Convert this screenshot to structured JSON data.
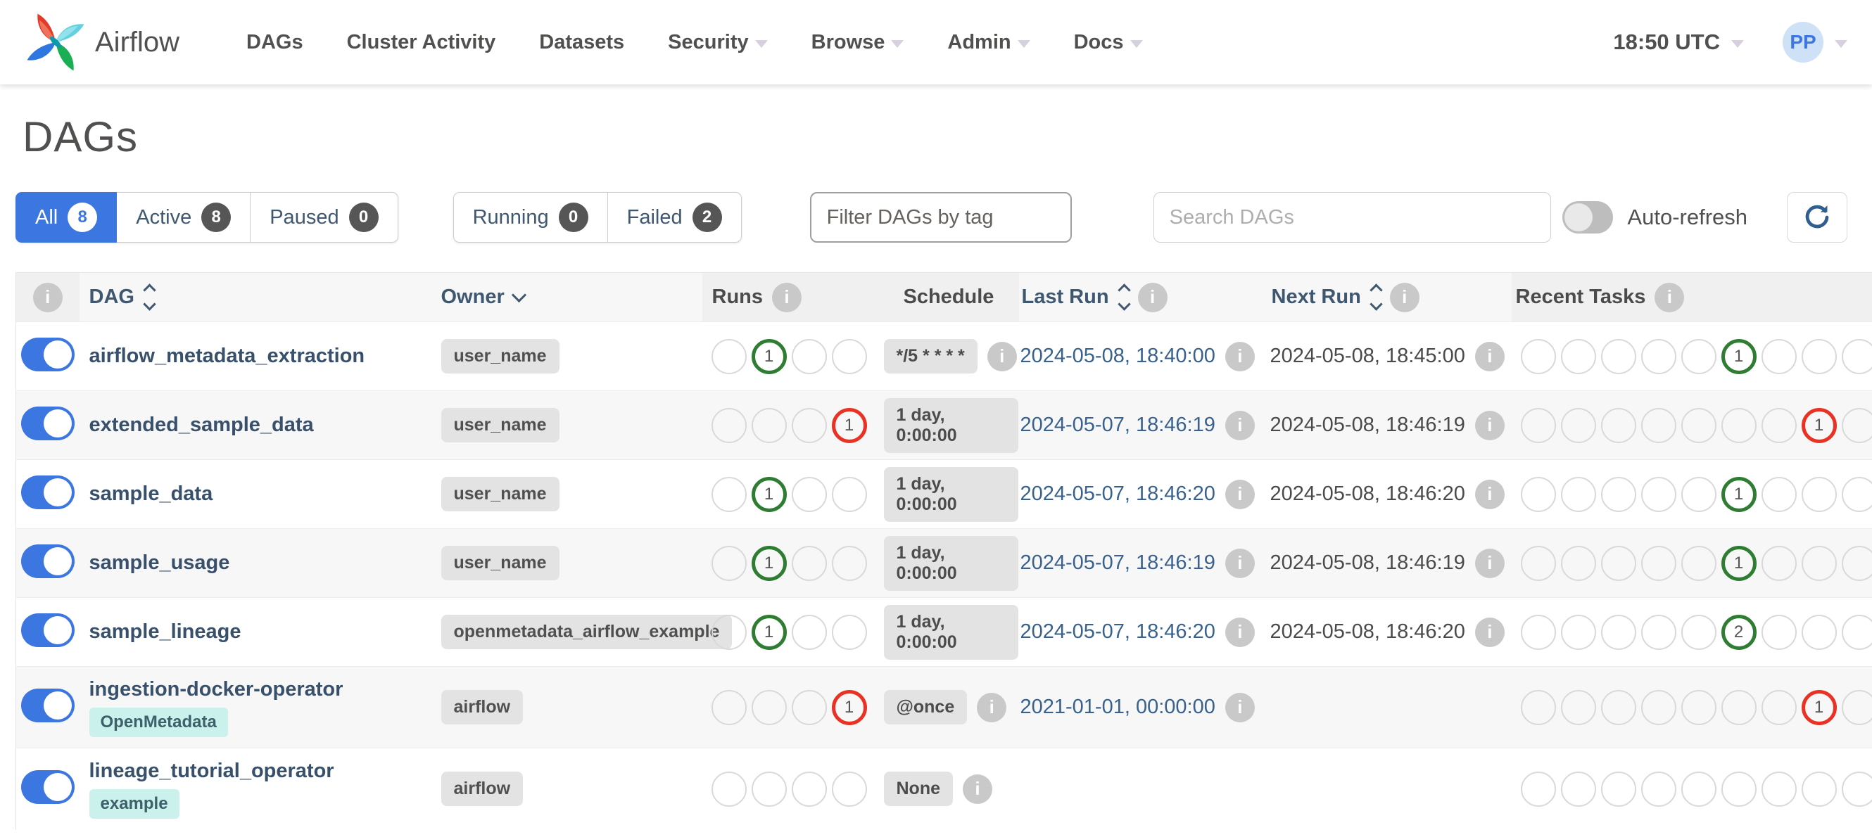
{
  "navbar": {
    "brand": "Airflow",
    "items": [
      {
        "label": "DAGs",
        "caret": false
      },
      {
        "label": "Cluster Activity",
        "caret": false
      },
      {
        "label": "Datasets",
        "caret": false
      },
      {
        "label": "Security",
        "caret": true
      },
      {
        "label": "Browse",
        "caret": true
      },
      {
        "label": "Admin",
        "caret": true
      },
      {
        "label": "Docs",
        "caret": true
      }
    ],
    "clock": "18:50 UTC",
    "user_initials": "PP"
  },
  "page": {
    "title": "DAGs"
  },
  "filters": {
    "tabs": [
      {
        "label": "All",
        "count": "8",
        "active": true
      },
      {
        "label": "Active",
        "count": "8",
        "active": false
      },
      {
        "label": "Paused",
        "count": "0",
        "active": false
      }
    ],
    "state_tabs": [
      {
        "label": "Running",
        "count": "0",
        "active": false
      },
      {
        "label": "Failed",
        "count": "2",
        "active": false
      }
    ],
    "tag_filter_placeholder": "Filter DAGs by tag",
    "search_placeholder": "Search DAGs",
    "auto_refresh_label": "Auto-refresh"
  },
  "table": {
    "header": {
      "dag": "DAG",
      "owner": "Owner",
      "runs": "Runs",
      "schedule": "Schedule",
      "last_run": "Last Run",
      "next_run": "Next Run",
      "recent_tasks": "Recent Tasks"
    },
    "run_state_slots": 4,
    "recent_state_slots": 9,
    "rows": [
      {
        "name": "airflow_metadata_extraction",
        "tags": [],
        "owner": "user_name",
        "paused": false,
        "runs": [
          null,
          {
            "state": "success",
            "count": "1"
          },
          null,
          null
        ],
        "schedule": {
          "label": "*/5 * * * *",
          "info": true
        },
        "last_run": {
          "label": "2024-05-08, 18:40:00",
          "info": true
        },
        "next_run": {
          "label": "2024-05-08, 18:45:00",
          "info": true
        },
        "recent_tasks": [
          null,
          null,
          null,
          null,
          null,
          {
            "state": "success",
            "count": "1"
          },
          null,
          null,
          null
        ]
      },
      {
        "name": "extended_sample_data",
        "tags": [],
        "owner": "user_name",
        "paused": false,
        "runs": [
          null,
          null,
          null,
          {
            "state": "failed",
            "count": "1"
          }
        ],
        "schedule": {
          "label": "1 day, 0:00:00",
          "info": false
        },
        "last_run": {
          "label": "2024-05-07, 18:46:19",
          "info": true
        },
        "next_run": {
          "label": "2024-05-08, 18:46:19",
          "info": true
        },
        "recent_tasks": [
          null,
          null,
          null,
          null,
          null,
          null,
          null,
          {
            "state": "failed",
            "count": "1"
          },
          null
        ]
      },
      {
        "name": "sample_data",
        "tags": [],
        "owner": "user_name",
        "paused": false,
        "runs": [
          null,
          {
            "state": "success",
            "count": "1"
          },
          null,
          null
        ],
        "schedule": {
          "label": "1 day, 0:00:00",
          "info": false
        },
        "last_run": {
          "label": "2024-05-07, 18:46:20",
          "info": true
        },
        "next_run": {
          "label": "2024-05-08, 18:46:20",
          "info": true
        },
        "recent_tasks": [
          null,
          null,
          null,
          null,
          null,
          {
            "state": "success",
            "count": "1"
          },
          null,
          null,
          null
        ]
      },
      {
        "name": "sample_usage",
        "tags": [],
        "owner": "user_name",
        "paused": false,
        "runs": [
          null,
          {
            "state": "success",
            "count": "1"
          },
          null,
          null
        ],
        "schedule": {
          "label": "1 day, 0:00:00",
          "info": false
        },
        "last_run": {
          "label": "2024-05-07, 18:46:19",
          "info": true
        },
        "next_run": {
          "label": "2024-05-08, 18:46:19",
          "info": true
        },
        "recent_tasks": [
          null,
          null,
          null,
          null,
          null,
          {
            "state": "success",
            "count": "1"
          },
          null,
          null,
          null
        ]
      },
      {
        "name": "sample_lineage",
        "tags": [],
        "owner": "openmetadata_airflow_example",
        "paused": false,
        "runs": [
          null,
          {
            "state": "success",
            "count": "1"
          },
          null,
          null
        ],
        "schedule": {
          "label": "1 day, 0:00:00",
          "info": false
        },
        "last_run": {
          "label": "2024-05-07, 18:46:20",
          "info": true
        },
        "next_run": {
          "label": "2024-05-08, 18:46:20",
          "info": true
        },
        "recent_tasks": [
          null,
          null,
          null,
          null,
          null,
          {
            "state": "success",
            "count": "2"
          },
          null,
          null,
          null
        ]
      },
      {
        "name": "ingestion-docker-operator",
        "tags": [
          "OpenMetadata"
        ],
        "owner": "airflow",
        "paused": false,
        "runs": [
          null,
          null,
          null,
          {
            "state": "failed",
            "count": "1"
          }
        ],
        "schedule": {
          "label": "@once",
          "info": true
        },
        "last_run": {
          "label": "2021-01-01, 00:00:00",
          "info": true
        },
        "next_run": null,
        "recent_tasks": [
          null,
          null,
          null,
          null,
          null,
          null,
          null,
          {
            "state": "failed",
            "count": "1"
          },
          null
        ]
      },
      {
        "name": "lineage_tutorial_operator",
        "tags": [
          "example"
        ],
        "owner": "airflow",
        "paused": false,
        "runs": [
          null,
          null,
          null,
          null
        ],
        "schedule": {
          "label": "None",
          "info": true
        },
        "last_run": null,
        "next_run": null,
        "recent_tasks": [
          null,
          null,
          null,
          null,
          null,
          null,
          null,
          null,
          null
        ]
      }
    ]
  },
  "colors": {
    "accent_blue": "#3b76e1",
    "success_green": "#2e7d32",
    "failed_red": "#e93223",
    "link_navy": "#39506b",
    "timestamp_blue": "#38618d",
    "tag_badge_bg": "#cbf1ec",
    "badge_gray_bg": "#e3e3e3"
  }
}
